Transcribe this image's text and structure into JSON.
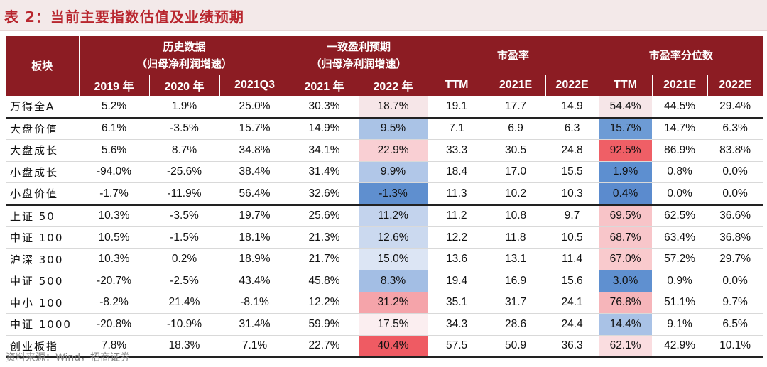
{
  "title": "表 2：当前主要指数估值及业绩预期",
  "header": {
    "sector": "板块",
    "groups": [
      {
        "line1": "历史数据",
        "line2": "（归母净利润增速）"
      },
      {
        "line1": "一致盈利预期",
        "line2": "（归母净利润增速）"
      },
      {
        "line1": "市盈率",
        "line2": ""
      },
      {
        "line1": "市盈率分位数",
        "line2": ""
      }
    ],
    "columns": [
      "2019 年",
      "2020 年",
      "2021Q3",
      "2021 年",
      "2022 年",
      "TTM",
      "2021E",
      "2022E",
      "TTM",
      "2021E",
      "2022E"
    ]
  },
  "rows": [
    {
      "name": "万得全A",
      "values": [
        "5.2%",
        "1.9%",
        "25.0%",
        "30.3%",
        "18.7%",
        "19.1",
        "17.7",
        "14.9",
        "54.4%",
        "44.5%",
        "29.4%"
      ],
      "colors": [
        "#f6e6e8",
        "#f6e6e8"
      ]
    },
    {
      "name": "大盘价值",
      "values": [
        "6.1%",
        "-3.5%",
        "15.7%",
        "14.9%",
        "9.5%",
        "7.1",
        "6.9",
        "6.3",
        "15.7%",
        "14.7%",
        "6.3%"
      ],
      "colors": [
        "#aac3e6",
        "#6d9bd5"
      ]
    },
    {
      "name": "大盘成长",
      "values": [
        "5.6%",
        "8.7%",
        "34.8%",
        "34.1%",
        "22.9%",
        "33.3",
        "30.5",
        "24.8",
        "92.5%",
        "86.9%",
        "83.8%"
      ],
      "colors": [
        "#f9cfd3",
        "#ef5f66"
      ]
    },
    {
      "name": "小盘成长",
      "values": [
        "-94.0%",
        "-25.6%",
        "38.4%",
        "31.4%",
        "9.9%",
        "18.4",
        "17.0",
        "15.5",
        "1.9%",
        "0.8%",
        "0.0%"
      ],
      "colors": [
        "#b1c7e8",
        "#5d8fd0"
      ]
    },
    {
      "name": "小盘价值",
      "values": [
        "-1.7%",
        "-11.9%",
        "56.4%",
        "32.6%",
        "-1.3%",
        "11.3",
        "10.2",
        "10.3",
        "0.4%",
        "0.0%",
        "0.0%"
      ],
      "colors": [
        "#5f8fcf",
        "#5b8bce"
      ]
    },
    {
      "name": "上证 50",
      "values": [
        "10.3%",
        "-3.5%",
        "19.7%",
        "25.6%",
        "11.2%",
        "11.2",
        "10.8",
        "9.7",
        "69.5%",
        "62.5%",
        "36.6%"
      ],
      "colors": [
        "#c3d3ed",
        "#f8c4c8"
      ]
    },
    {
      "name": "中证 100",
      "values": [
        "10.5%",
        "-1.5%",
        "18.1%",
        "21.3%",
        "12.6%",
        "12.2",
        "11.8",
        "10.5",
        "68.7%",
        "63.4%",
        "36.8%"
      ],
      "colors": [
        "#cbd9ef",
        "#f8c6ca"
      ]
    },
    {
      "name": "沪深 300",
      "values": [
        "10.3%",
        "0.2%",
        "18.9%",
        "21.7%",
        "15.0%",
        "13.6",
        "13.1",
        "11.4",
        "67.0%",
        "57.2%",
        "29.7%"
      ],
      "colors": [
        "#dce5f4",
        "#f9cacd"
      ]
    },
    {
      "name": "中证 500",
      "values": [
        "-20.7%",
        "-2.5%",
        "43.4%",
        "45.8%",
        "8.3%",
        "19.4",
        "16.9",
        "15.6",
        "3.0%",
        "0.9%",
        "0.0%"
      ],
      "colors": [
        "#a3bee4",
        "#5f90d0"
      ]
    },
    {
      "name": "中小 100",
      "values": [
        "-8.2%",
        "21.4%",
        "-8.1%",
        "12.2%",
        "31.2%",
        "35.1",
        "31.7",
        "24.1",
        "76.8%",
        "51.1%",
        "9.7%"
      ],
      "colors": [
        "#f5a4aa",
        "#f6b5ba"
      ]
    },
    {
      "name": "中证 1000",
      "values": [
        "-20.8%",
        "-10.9%",
        "31.4%",
        "59.9%",
        "17.5%",
        "34.3",
        "28.6",
        "24.4",
        "14.4%",
        "9.1%",
        "6.5%"
      ],
      "colors": [
        "#fbeef0",
        "#a9c2e6"
      ]
    },
    {
      "name": "创业板指",
      "values": [
        "7.8%",
        "18.3%",
        "7.1%",
        "22.7%",
        "40.4%",
        "57.5",
        "50.9",
        "36.3",
        "62.1%",
        "42.9%",
        "10.1%"
      ],
      "colors": [
        "#ef5b63",
        "#fadde0"
      ]
    }
  ],
  "source": "资料来源：Wind，招商证券"
}
